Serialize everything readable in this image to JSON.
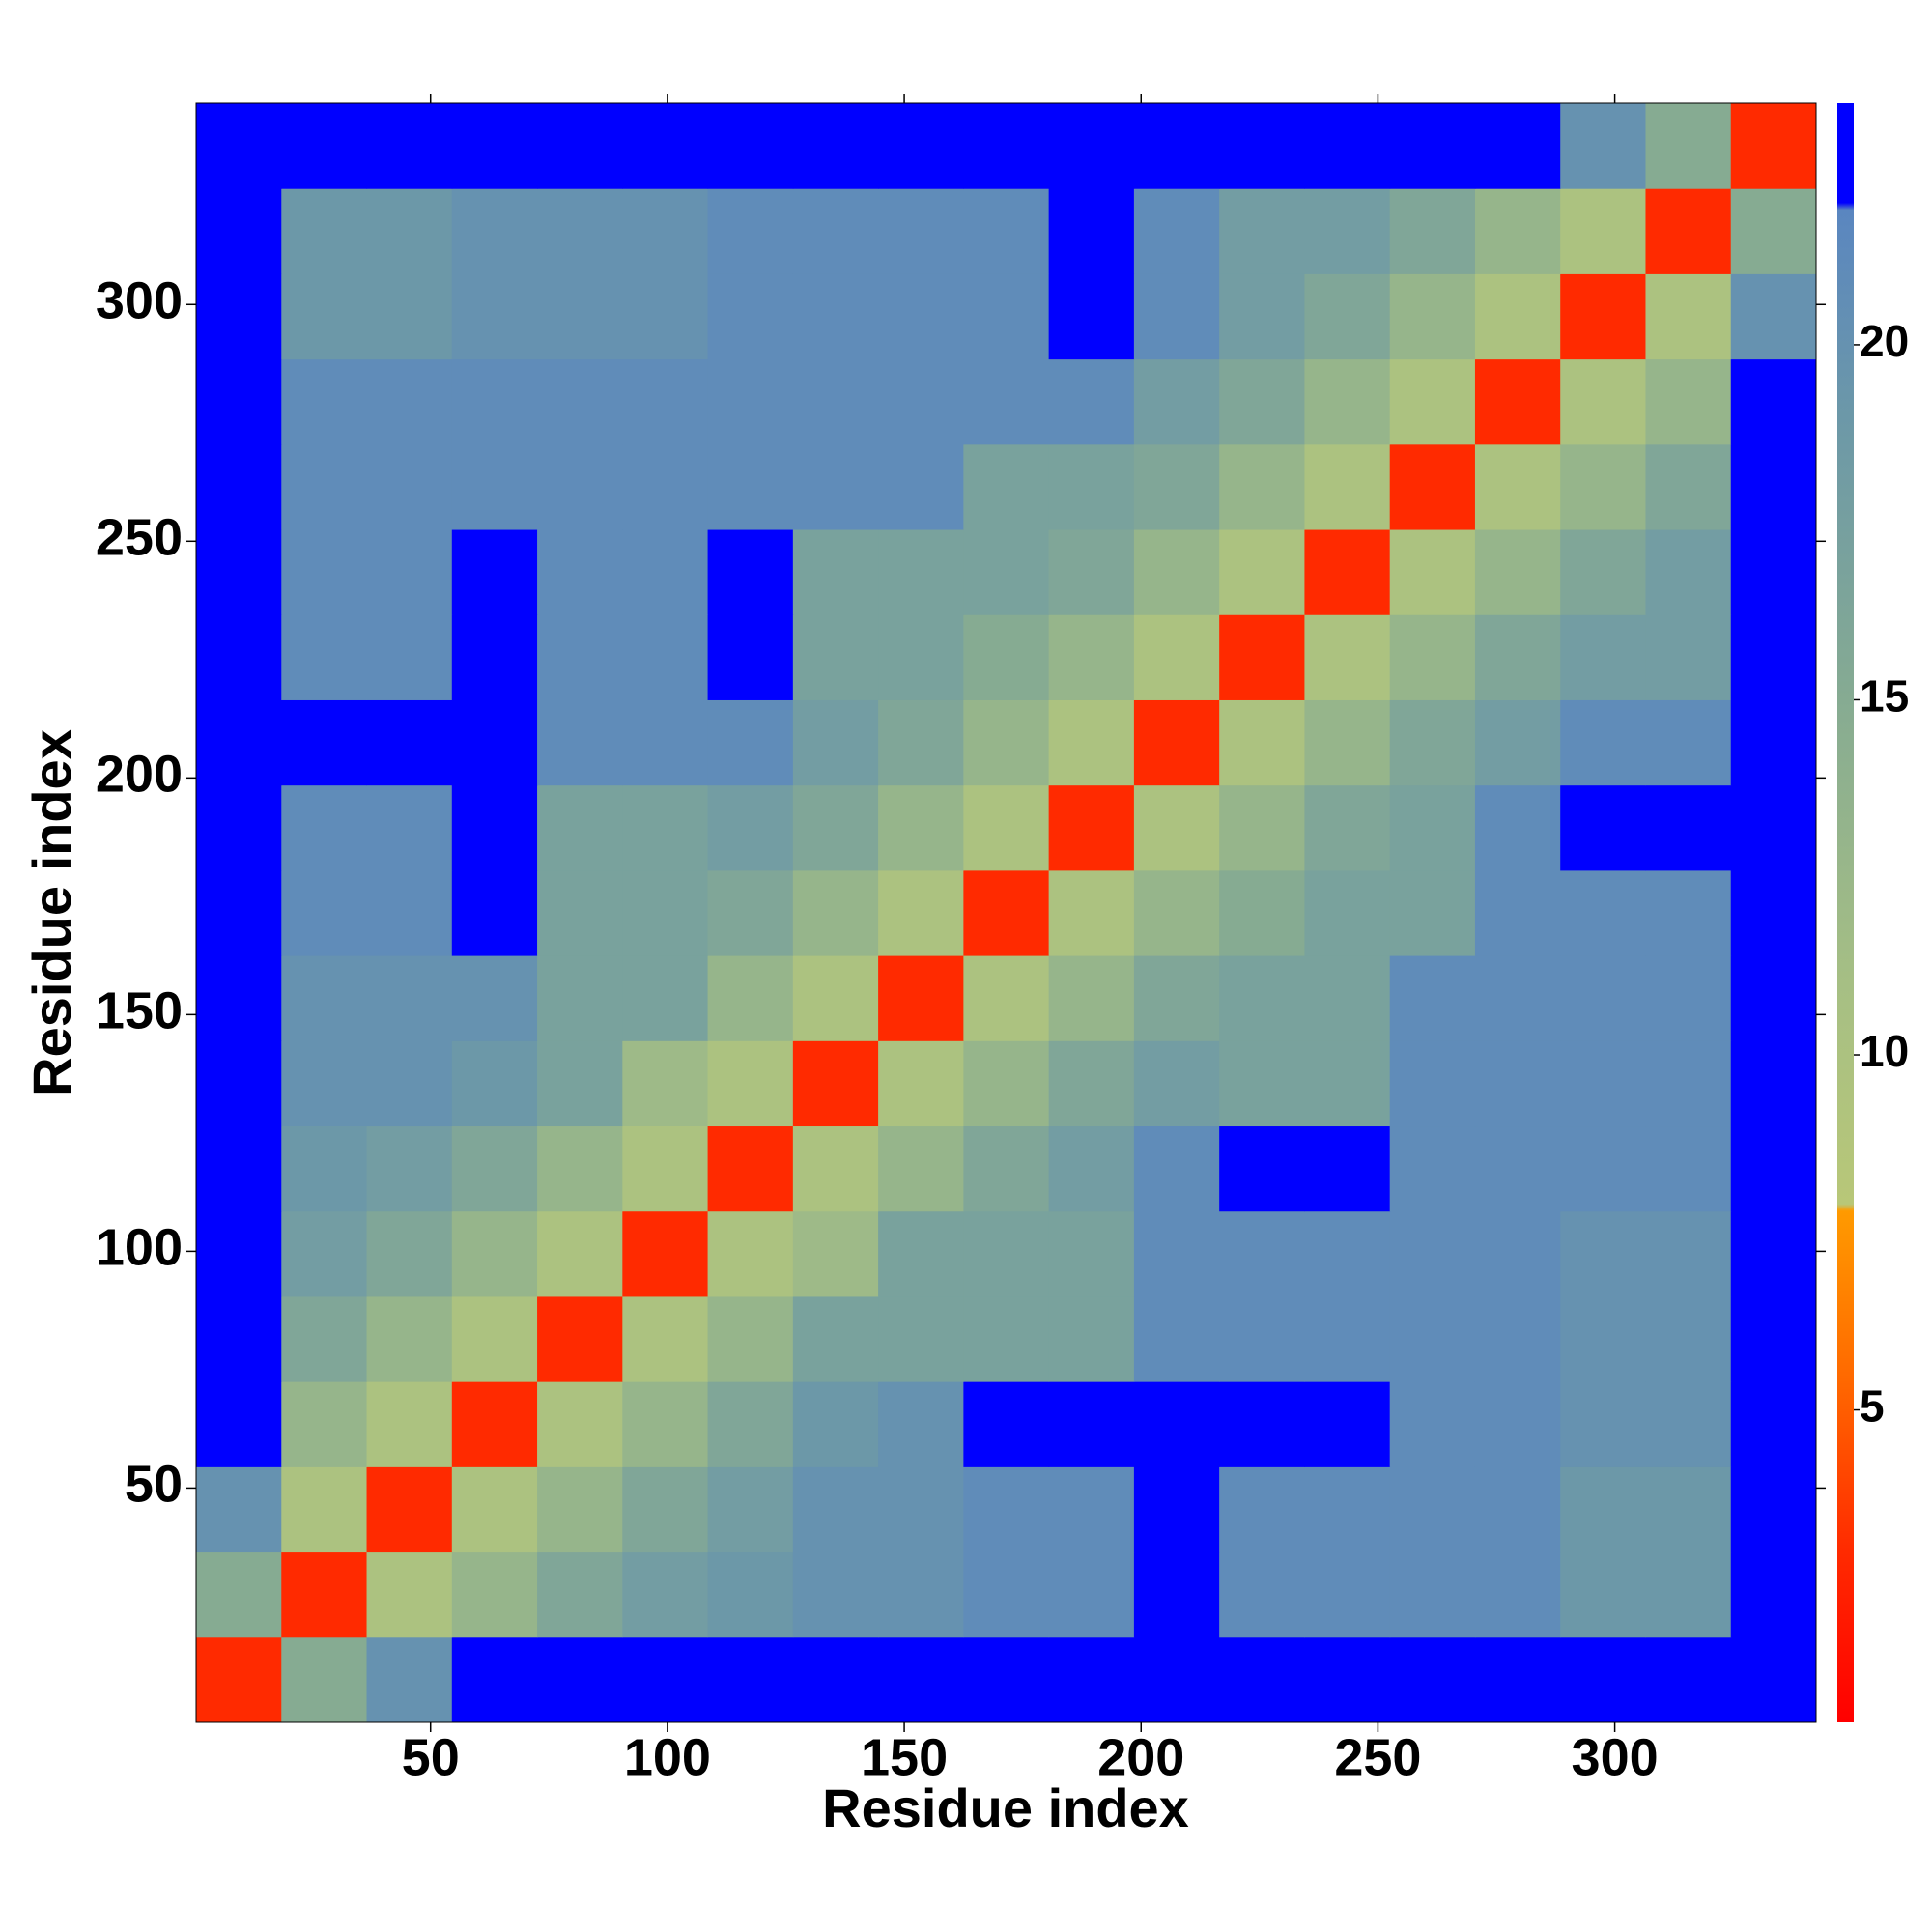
{
  "chart_data": {
    "type": "heatmap",
    "x_label": "Residue index",
    "y_label": "Residue index",
    "xlim": [
      0.5,
      342.5
    ],
    "ylim": [
      0.5,
      342.5
    ],
    "xticks": [
      50,
      100,
      150,
      200,
      250,
      300
    ],
    "yticks": [
      50,
      100,
      150,
      200,
      250,
      300
    ],
    "bins": [
      0.5,
      18.5,
      36.5,
      54.5,
      72.5,
      90.5,
      108.5,
      126.5,
      144.5,
      162.5,
      180.5,
      198.5,
      216.5,
      234.5,
      252.5,
      270.5,
      288.5,
      306.5,
      324.5,
      342.5
    ],
    "values": [
      [
        3,
        15,
        20,
        23,
        23,
        23,
        23,
        23,
        23,
        23,
        23,
        23,
        23,
        23,
        23,
        23,
        23,
        23,
        23
      ],
      [
        15,
        3,
        10,
        13,
        16,
        18,
        19,
        20,
        20,
        21,
        21,
        23,
        21,
        21,
        21,
        21,
        19,
        19,
        23
      ],
      [
        20,
        10,
        3,
        10,
        13,
        16,
        18,
        20,
        20,
        21,
        21,
        23,
        21,
        21,
        21,
        21,
        19,
        19,
        23
      ],
      [
        23,
        13,
        10,
        3,
        10,
        13,
        16,
        19,
        20,
        23,
        23,
        23,
        23,
        23,
        21,
        21,
        20,
        20,
        23
      ],
      [
        23,
        16,
        13,
        10,
        3,
        10,
        13,
        17,
        17,
        17,
        17,
        21,
        21,
        21,
        21,
        21,
        20,
        20,
        23
      ],
      [
        23,
        18,
        16,
        13,
        10,
        3,
        10,
        12,
        17,
        17,
        17,
        21,
        21,
        21,
        21,
        21,
        20,
        20,
        23
      ],
      [
        23,
        19,
        18,
        16,
        13,
        10,
        3,
        10,
        13,
        16,
        18,
        21,
        23,
        23,
        21,
        21,
        21,
        21,
        23
      ],
      [
        23,
        20,
        20,
        19,
        17,
        12,
        10,
        3,
        10,
        13,
        16,
        18,
        17,
        17,
        21,
        21,
        21,
        21,
        23
      ],
      [
        23,
        20,
        20,
        20,
        17,
        17,
        13,
        10,
        3,
        10,
        13,
        16,
        17,
        17,
        21,
        21,
        21,
        21,
        23
      ],
      [
        23,
        21,
        21,
        23,
        17,
        17,
        16,
        13,
        10,
        3,
        10,
        13,
        15,
        17,
        17,
        21,
        21,
        21,
        23
      ],
      [
        23,
        21,
        21,
        23,
        17,
        17,
        18,
        16,
        13,
        10,
        3,
        10,
        13,
        16,
        17,
        21,
        23,
        23,
        23
      ],
      [
        23,
        23,
        23,
        23,
        21,
        21,
        21,
        18,
        16,
        13,
        10,
        3,
        10,
        13,
        16,
        18,
        21,
        21,
        23
      ],
      [
        23,
        21,
        21,
        23,
        21,
        21,
        23,
        17,
        17,
        15,
        13,
        10,
        3,
        10,
        13,
        16,
        18,
        18,
        23
      ],
      [
        23,
        21,
        21,
        23,
        21,
        21,
        23,
        17,
        17,
        17,
        16,
        13,
        10,
        3,
        10,
        13,
        16,
        18,
        23
      ],
      [
        23,
        21,
        21,
        21,
        21,
        21,
        21,
        21,
        21,
        17,
        17,
        16,
        13,
        10,
        3,
        10,
        13,
        16,
        23
      ],
      [
        23,
        21,
        21,
        21,
        21,
        21,
        21,
        21,
        21,
        21,
        21,
        18,
        16,
        13,
        10,
        3,
        10,
        13,
        23
      ],
      [
        23,
        19,
        19,
        20,
        20,
        20,
        21,
        21,
        21,
        21,
        23,
        21,
        18,
        16,
        13,
        10,
        3,
        10,
        20
      ],
      [
        23,
        19,
        19,
        20,
        20,
        20,
        21,
        21,
        21,
        21,
        23,
        21,
        18,
        18,
        16,
        13,
        10,
        3,
        15
      ],
      [
        23,
        23,
        23,
        23,
        23,
        23,
        23,
        23,
        23,
        23,
        23,
        23,
        23,
        23,
        23,
        23,
        20,
        15,
        3
      ]
    ],
    "clim": [
      0.6,
      23.4
    ],
    "cticks": [
      5,
      10,
      15,
      20
    ],
    "colorscale": [
      [
        0.6,
        "#ff0000"
      ],
      [
        3,
        "#ff2a00"
      ],
      [
        5.5,
        "#ff6a00"
      ],
      [
        7.8,
        "#ff9a00"
      ],
      [
        7.9,
        "#b8c778"
      ],
      [
        11,
        "#a6bf84"
      ],
      [
        15,
        "#86ab92"
      ],
      [
        19,
        "#6c98a8"
      ],
      [
        21.9,
        "#5a86c0"
      ],
      [
        22,
        "#0000ff"
      ],
      [
        23.4,
        "#0000ff"
      ]
    ]
  }
}
